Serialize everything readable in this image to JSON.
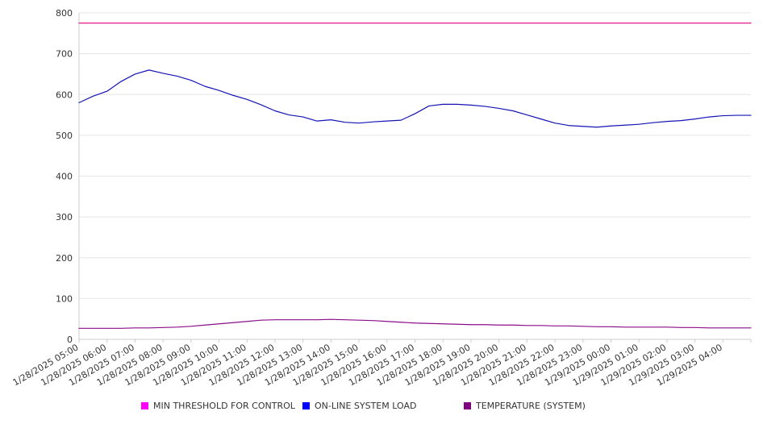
{
  "chart_data": {
    "type": "line",
    "ylim": [
      0,
      800
    ],
    "yticks": [
      "0",
      "100",
      "200",
      "300",
      "400",
      "500",
      "600",
      "700",
      "800"
    ],
    "xticks": [
      "1/28/2025 05:00",
      "1/28/2025 06:00",
      "1/28/2025 07:00",
      "1/28/2025 08:00",
      "1/28/2025 09:00",
      "1/28/2025 10:00",
      "1/28/2025 11:00",
      "1/28/2025 12:00",
      "1/28/2025 13:00",
      "1/28/2025 14:00",
      "1/28/2025 15:00",
      "1/28/2025 16:00",
      "1/28/2025 17:00",
      "1/28/2025 18:00",
      "1/28/2025 19:00",
      "1/28/2025 20:00",
      "1/28/2025 21:00",
      "1/28/2025 22:00",
      "1/28/2025 23:00",
      "1/29/2025 00:00",
      "1/29/2025 01:00",
      "1/29/2025 02:00",
      "1/29/2025 03:00",
      "1/29/2025 04:00"
    ],
    "x_end": "1/29/2025 05:00",
    "x_step_minutes": 30,
    "grid": {
      "horizontal": true,
      "vertical": false
    },
    "legend_position": "bottom",
    "series": [
      {
        "name": "MIN THRESHOLD FOR CONTROL",
        "color": "#e6198a",
        "legend_color": "#ff00ff",
        "values": [
          775,
          775,
          775,
          775,
          775,
          775,
          775,
          775,
          775,
          775,
          775,
          775,
          775,
          775,
          775,
          775,
          775,
          775,
          775,
          775,
          775,
          775,
          775,
          775,
          775,
          775,
          775,
          775,
          775,
          775,
          775,
          775,
          775,
          775,
          775,
          775,
          775,
          775,
          775,
          775,
          775,
          775,
          775,
          775,
          775,
          775,
          775,
          775,
          775
        ]
      },
      {
        "name": "ON-LINE SYSTEM LOAD",
        "color": "#1414b4",
        "legend_color": "#0000ff",
        "values": [
          580,
          596,
          608,
          632,
          650,
          660,
          652,
          645,
          635,
          620,
          610,
          598,
          588,
          575,
          560,
          550,
          545,
          535,
          538,
          532,
          530,
          533,
          535,
          537,
          553,
          572,
          576,
          576,
          574,
          571,
          566,
          560,
          550,
          540,
          530,
          524,
          522,
          520,
          523,
          525,
          527,
          531,
          534,
          536,
          540,
          545,
          548,
          549,
          549
        ]
      },
      {
        "name": "TEMPERATURE (SYSTEM)",
        "color": "#8a0e8a",
        "legend_color": "#800080",
        "values": [
          27,
          27,
          27,
          27,
          28,
          28,
          29,
          30,
          32,
          35,
          38,
          41,
          44,
          47,
          48,
          48,
          48,
          48,
          49,
          48,
          47,
          46,
          44,
          42,
          40,
          39,
          38,
          37,
          36,
          36,
          35,
          35,
          34,
          34,
          33,
          33,
          32,
          31,
          31,
          30,
          30,
          30,
          30,
          29,
          29,
          28,
          28,
          28,
          28
        ]
      }
    ]
  }
}
